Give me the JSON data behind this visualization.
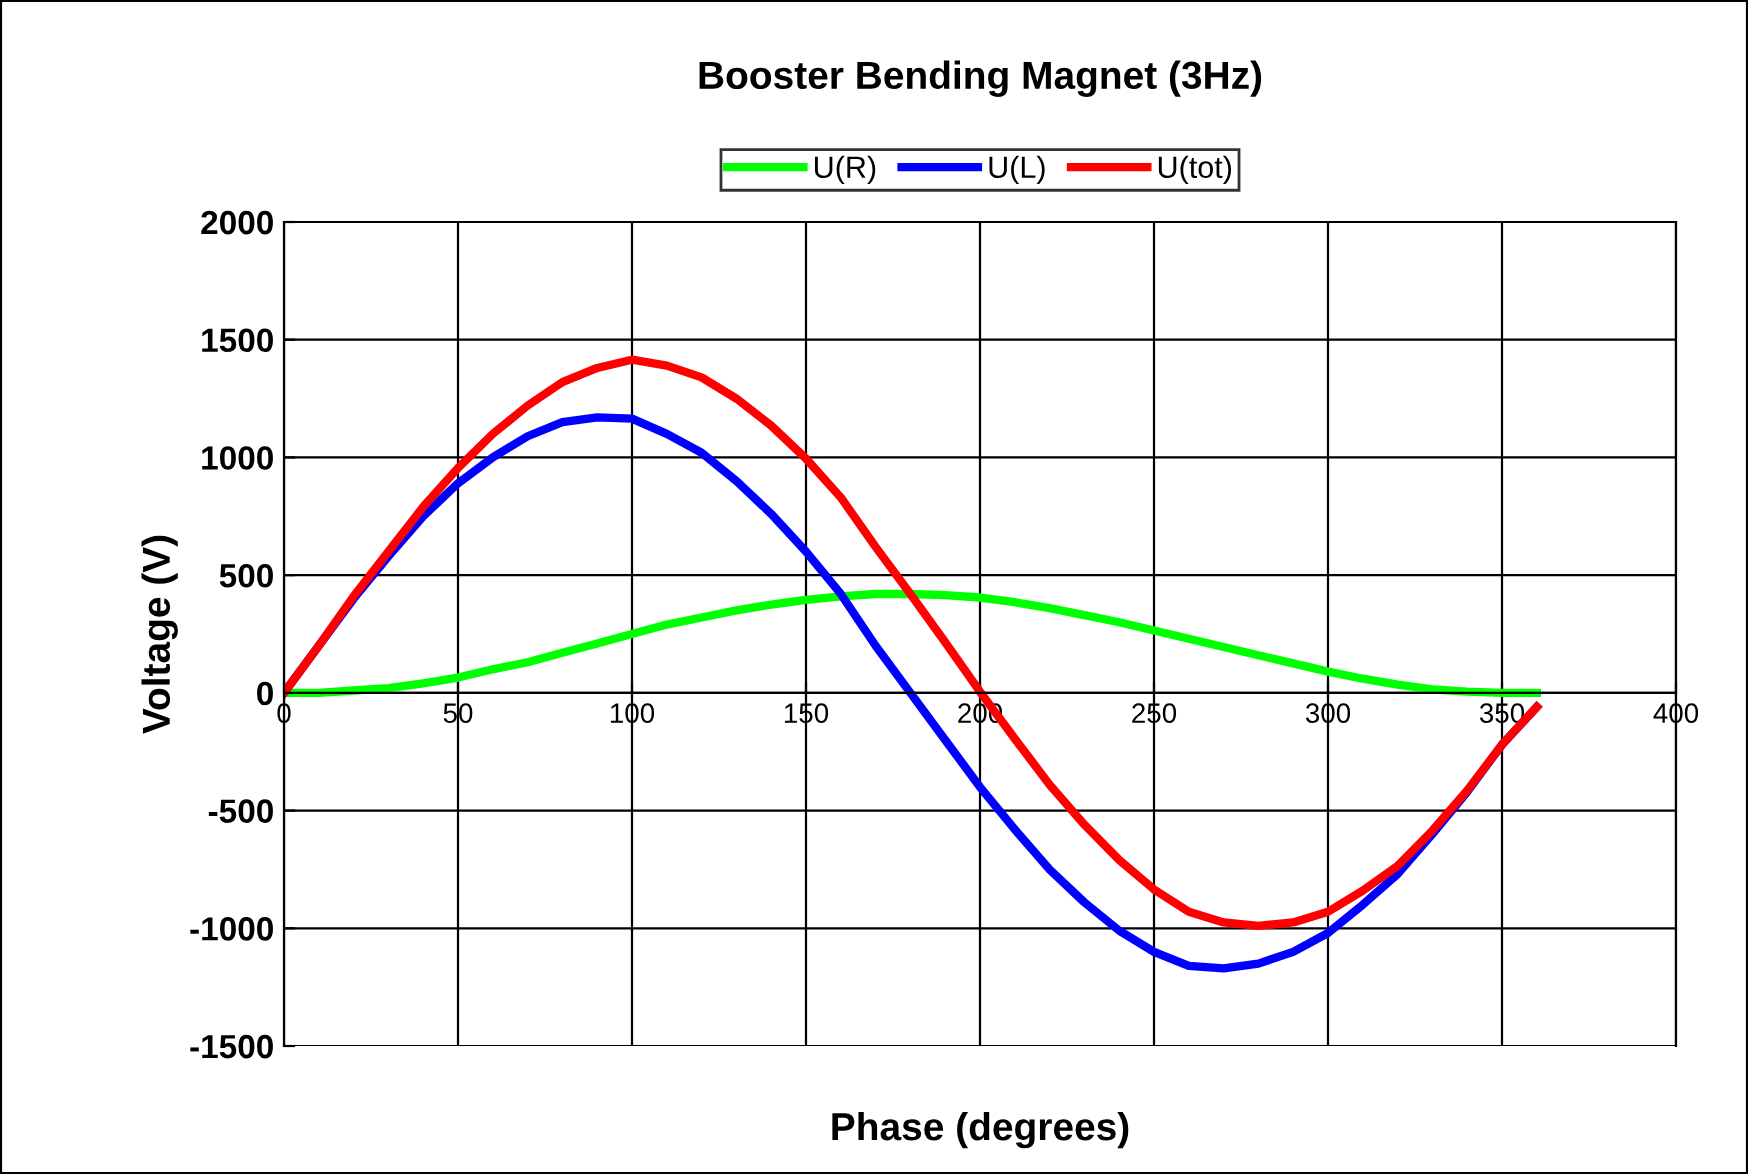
{
  "chart_data": {
    "type": "line",
    "title": "Booster Bending Magnet (3Hz)",
    "xlabel": "Phase (degrees)",
    "ylabel": "Voltage (V)",
    "x": [
      0,
      10,
      20,
      30,
      40,
      50,
      60,
      70,
      80,
      90,
      100,
      110,
      120,
      130,
      140,
      150,
      160,
      170,
      180,
      190,
      200,
      210,
      220,
      230,
      240,
      250,
      260,
      270,
      280,
      290,
      300,
      310,
      320,
      330,
      340,
      350,
      360
    ],
    "series": [
      {
        "name": "U(R)",
        "color": "#00ff00",
        "values": [
          0,
          0,
          10,
          20,
          40,
          65,
          100,
          130,
          170,
          210,
          250,
          290,
          320,
          350,
          375,
          395,
          410,
          420,
          420,
          415,
          405,
          385,
          360,
          330,
          300,
          265,
          230,
          195,
          160,
          125,
          90,
          60,
          35,
          15,
          5,
          0,
          0
        ]
      },
      {
        "name": "U(L)",
        "color": "#0000ff",
        "values": [
          0,
          200,
          400,
          580,
          750,
          890,
          1000,
          1090,
          1150,
          1170,
          1165,
          1100,
          1020,
          900,
          760,
          600,
          420,
          200,
          0,
          -200,
          -400,
          -580,
          -750,
          -890,
          -1010,
          -1100,
          -1160,
          -1170,
          -1150,
          -1100,
          -1020,
          -900,
          -770,
          -600,
          -420,
          -220,
          -60
        ]
      },
      {
        "name": "U(tot)",
        "color": "#ff0000",
        "values": [
          0,
          200,
          410,
          600,
          790,
          955,
          1100,
          1220,
          1320,
          1380,
          1415,
          1390,
          1340,
          1250,
          1135,
          995,
          830,
          620,
          420,
          215,
          5,
          -195,
          -390,
          -560,
          -710,
          -835,
          -930,
          -975,
          -990,
          -975,
          -930,
          -840,
          -735,
          -585,
          -415,
          -220,
          -60
        ]
      }
    ],
    "xlim": [
      0,
      400
    ],
    "xticks": [
      0,
      50,
      100,
      150,
      200,
      250,
      300,
      350,
      400
    ],
    "ylim": [
      -1500,
      2000
    ],
    "yticks": [
      -1500,
      -1000,
      -500,
      0,
      500,
      1000,
      1500,
      2000
    ],
    "grid": true,
    "legend": "top",
    "marker": "none",
    "line_style": "solid"
  }
}
